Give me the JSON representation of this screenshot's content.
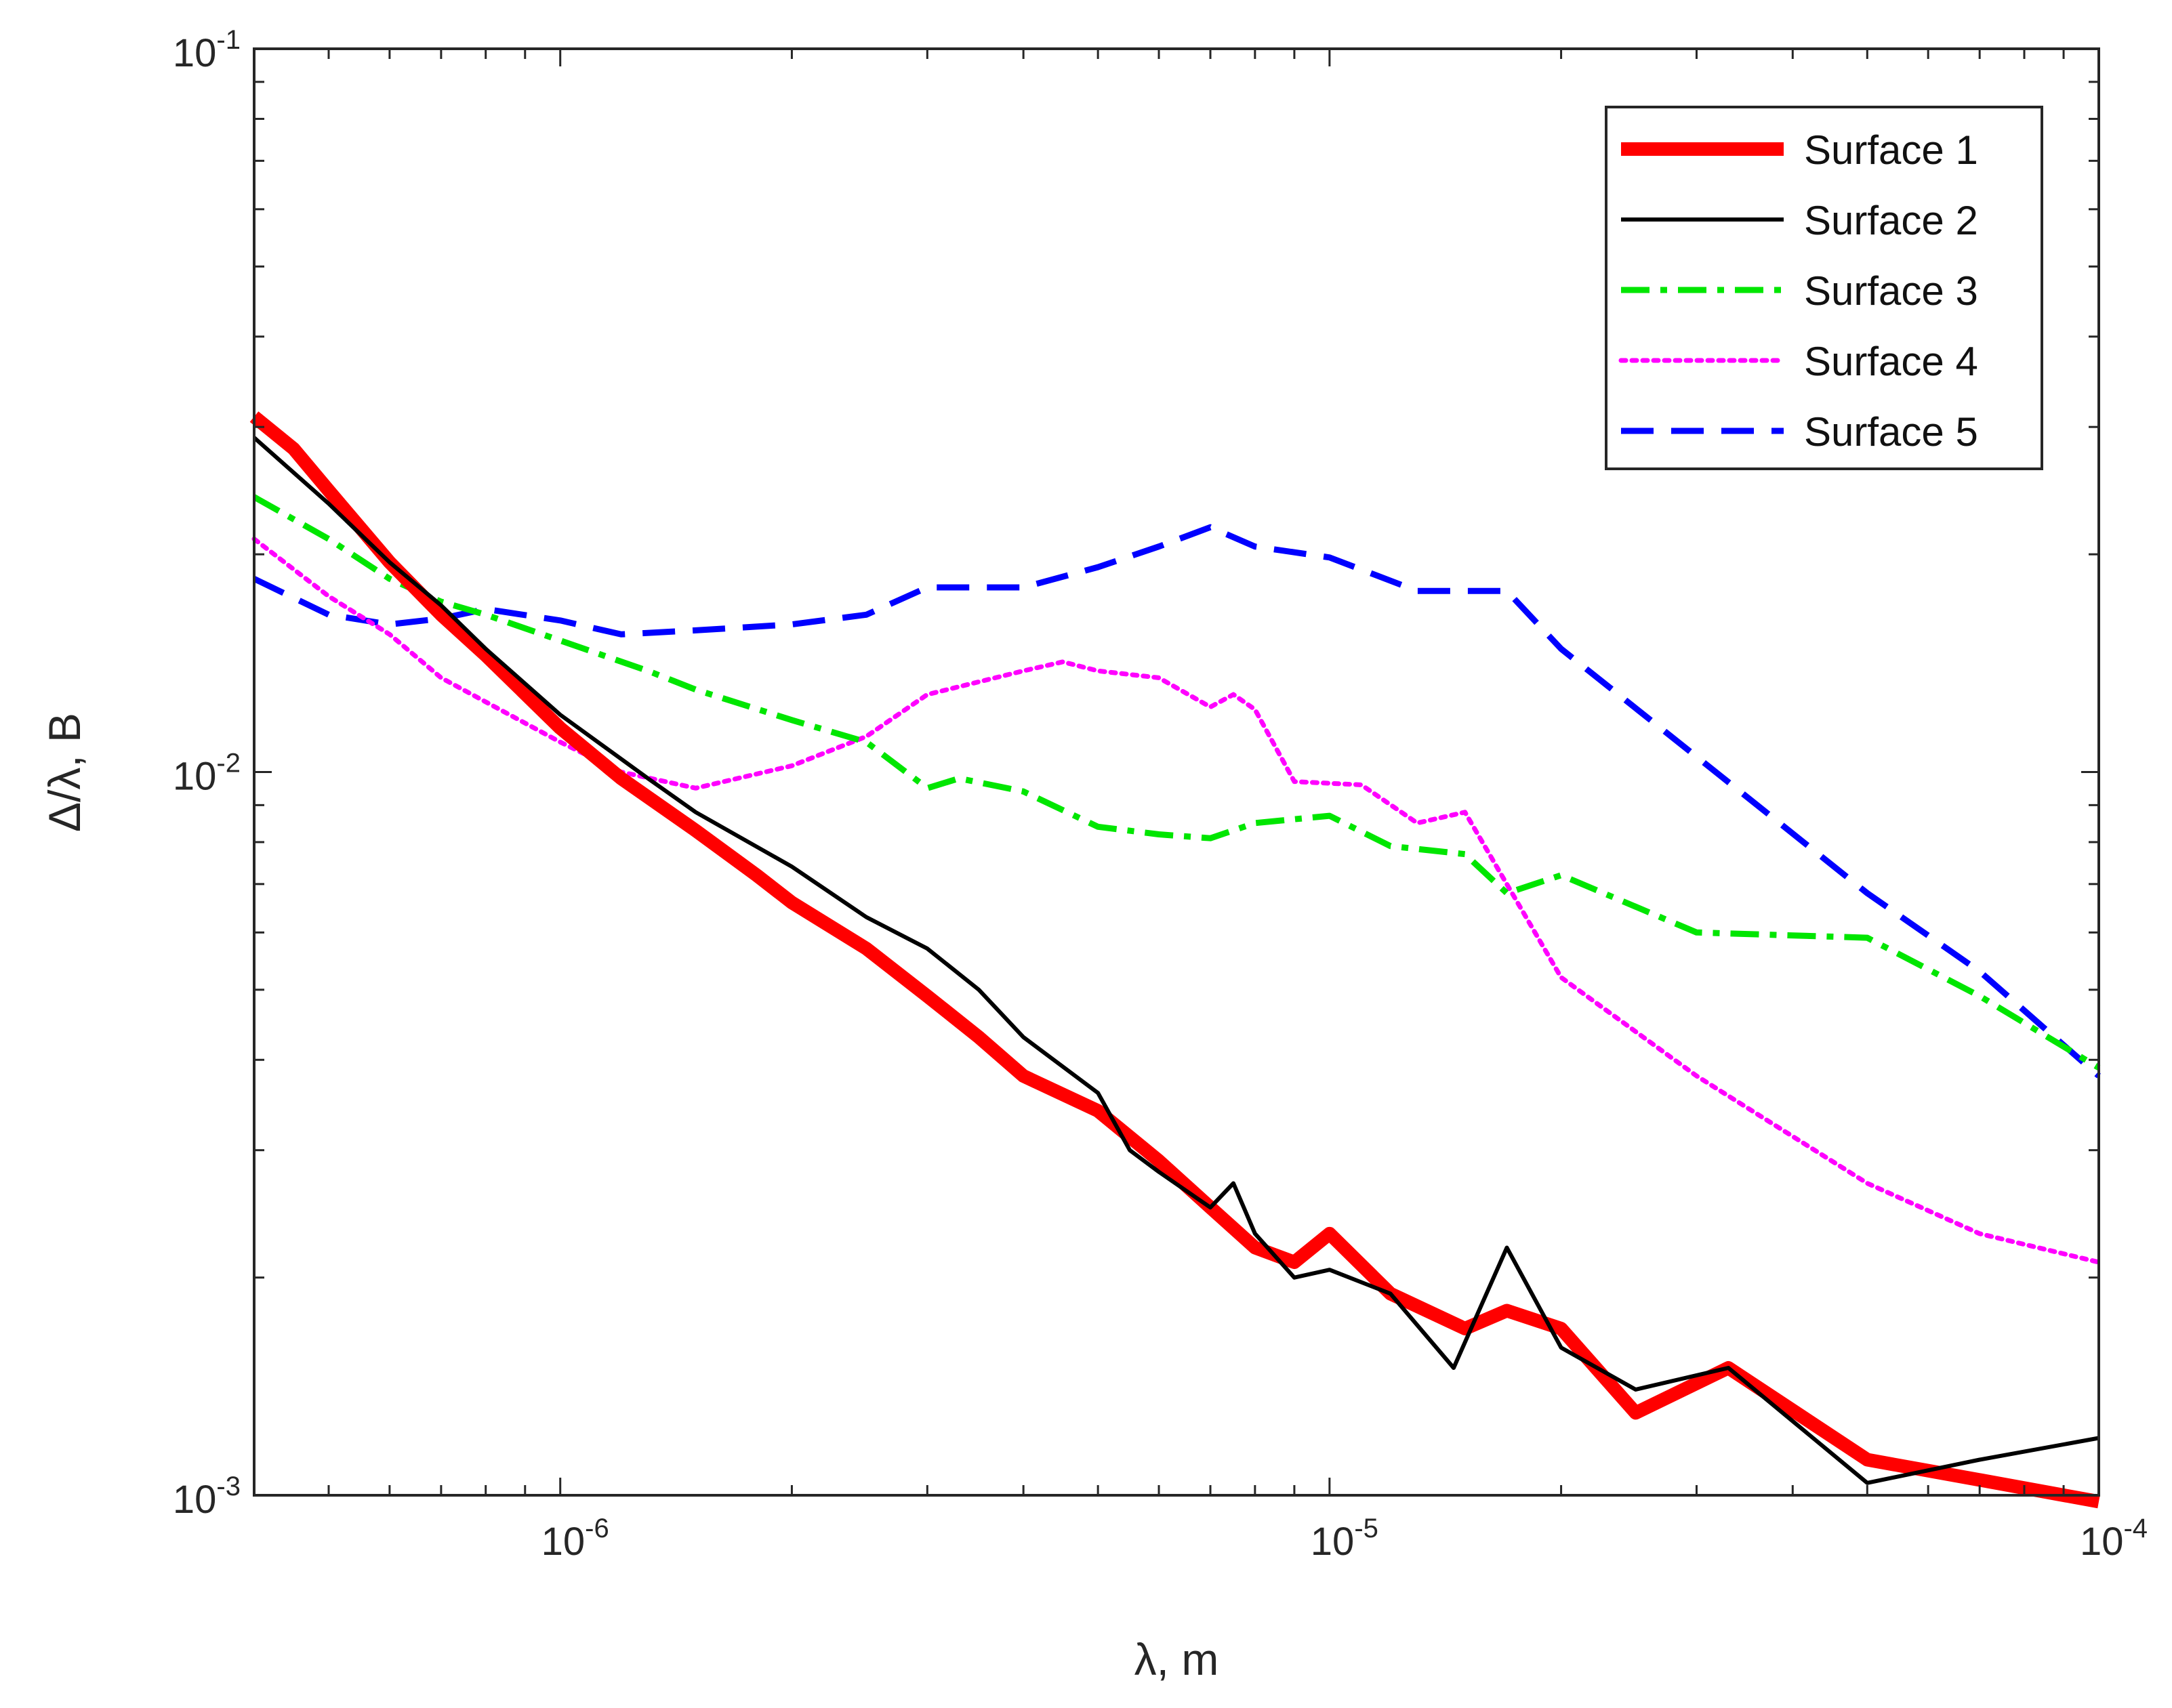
{
  "chart_data": {
    "type": "line",
    "title": "",
    "xlabel": "λ, m",
    "ylabel": "Δ/λ,  B",
    "xscale": "log",
    "yscale": "log",
    "xlim": [
      4e-07,
      0.0001
    ],
    "ylim": [
      0.001,
      0.1
    ],
    "grid": false,
    "legend_position": "top-right",
    "x_ticks": [
      {
        "value": 1e-06,
        "base": "10",
        "exp": "-6"
      },
      {
        "value": 1e-05,
        "base": "10",
        "exp": "-5"
      },
      {
        "value": 0.0001,
        "base": "10",
        "exp": "-4"
      }
    ],
    "y_ticks": [
      {
        "value": 0.001,
        "base": "10",
        "exp": "-3"
      },
      {
        "value": 0.01,
        "base": "10",
        "exp": "-2"
      },
      {
        "value": 0.1,
        "base": "10",
        "exp": "-1"
      }
    ],
    "series": [
      {
        "name": "Surface 1",
        "color": "#ff0000",
        "style": "solid-thick",
        "points": [
          [
            4e-07,
            0.031
          ],
          [
            4.5e-07,
            0.028
          ],
          [
            5e-07,
            0.0245
          ],
          [
            6e-07,
            0.0195
          ],
          [
            7e-07,
            0.0165
          ],
          [
            8e-07,
            0.0145
          ],
          [
            1e-06,
            0.0115
          ],
          [
            1.2e-06,
            0.0098
          ],
          [
            1.5e-06,
            0.0083
          ],
          [
            1.8e-06,
            0.0072
          ],
          [
            2e-06,
            0.0066
          ],
          [
            2.5e-06,
            0.0057
          ],
          [
            3e-06,
            0.0049
          ],
          [
            3.5e-06,
            0.0043
          ],
          [
            4e-06,
            0.0038
          ],
          [
            5e-06,
            0.0034
          ],
          [
            6e-06,
            0.0029
          ],
          [
            7e-06,
            0.0025
          ],
          [
            8e-06,
            0.0022
          ],
          [
            9e-06,
            0.0021
          ],
          [
            1e-05,
            0.0023
          ],
          [
            1.2e-05,
            0.0019
          ],
          [
            1.5e-05,
            0.0017
          ],
          [
            1.7e-05,
            0.0018
          ],
          [
            2e-05,
            0.0017
          ],
          [
            2.5e-05,
            0.0013
          ],
          [
            3.3e-05,
            0.0015
          ],
          [
            5e-05,
            0.00112
          ],
          [
            7e-05,
            0.00105
          ],
          [
            0.0001,
            0.00098
          ]
        ]
      },
      {
        "name": "Surface 2",
        "color": "#000000",
        "style": "solid",
        "points": [
          [
            4e-07,
            0.029
          ],
          [
            5e-07,
            0.0235
          ],
          [
            6e-07,
            0.0195
          ],
          [
            7e-07,
            0.017
          ],
          [
            8e-07,
            0.0148
          ],
          [
            1e-06,
            0.012
          ],
          [
            1.3e-06,
            0.0098
          ],
          [
            1.5e-06,
            0.0088
          ],
          [
            2e-06,
            0.0074
          ],
          [
            2.5e-06,
            0.0063
          ],
          [
            3e-06,
            0.0057
          ],
          [
            3.5e-06,
            0.005
          ],
          [
            4e-06,
            0.0043
          ],
          [
            5e-06,
            0.0036
          ],
          [
            5.5e-06,
            0.003
          ],
          [
            6e-06,
            0.0028
          ],
          [
            7e-06,
            0.0025
          ],
          [
            7.5e-06,
            0.0027
          ],
          [
            8e-06,
            0.0023
          ],
          [
            9e-06,
            0.002
          ],
          [
            1e-05,
            0.00205
          ],
          [
            1.2e-05,
            0.0019
          ],
          [
            1.45e-05,
            0.0015
          ],
          [
            1.7e-05,
            0.0022
          ],
          [
            2e-05,
            0.0016
          ],
          [
            2.5e-05,
            0.0014
          ],
          [
            3.3e-05,
            0.0015
          ],
          [
            5e-05,
            0.00104
          ],
          [
            7e-05,
            0.00112
          ],
          [
            0.0001,
            0.0012
          ]
        ]
      },
      {
        "name": "Surface 3",
        "color": "#00e600",
        "style": "dash-dot",
        "points": [
          [
            4e-07,
            0.024
          ],
          [
            5e-07,
            0.021
          ],
          [
            6e-07,
            0.0185
          ],
          [
            7e-07,
            0.0172
          ],
          [
            8e-07,
            0.0165
          ],
          [
            1e-06,
            0.0152
          ],
          [
            1.3e-06,
            0.0138
          ],
          [
            1.5e-06,
            0.013
          ],
          [
            2e-06,
            0.0118
          ],
          [
            2.5e-06,
            0.011
          ],
          [
            3e-06,
            0.0095
          ],
          [
            3.3e-06,
            0.0098
          ],
          [
            4e-06,
            0.0094
          ],
          [
            5e-06,
            0.0084
          ],
          [
            6e-06,
            0.0082
          ],
          [
            7e-06,
            0.0081
          ],
          [
            8e-06,
            0.0085
          ],
          [
            1e-05,
            0.0087
          ],
          [
            1.2e-05,
            0.0079
          ],
          [
            1.5e-05,
            0.0077
          ],
          [
            1.7e-05,
            0.0068
          ],
          [
            2e-05,
            0.0072
          ],
          [
            3e-05,
            0.006
          ],
          [
            5e-05,
            0.0059
          ],
          [
            7e-05,
            0.0049
          ],
          [
            0.0001,
            0.0039
          ]
        ]
      },
      {
        "name": "Surface 4",
        "color": "#ff00ff",
        "style": "dotted",
        "points": [
          [
            4e-07,
            0.021
          ],
          [
            5e-07,
            0.0175
          ],
          [
            6e-07,
            0.0155
          ],
          [
            7e-07,
            0.0135
          ],
          [
            8e-07,
            0.0125
          ],
          [
            1e-06,
            0.011
          ],
          [
            1.2e-06,
            0.01
          ],
          [
            1.5e-06,
            0.0095
          ],
          [
            2e-06,
            0.0102
          ],
          [
            2.5e-06,
            0.0112
          ],
          [
            3e-06,
            0.0128
          ],
          [
            4e-06,
            0.0138
          ],
          [
            4.5e-06,
            0.0142
          ],
          [
            5e-06,
            0.0138
          ],
          [
            6e-06,
            0.0135
          ],
          [
            7e-06,
            0.0123
          ],
          [
            7.5e-06,
            0.0128
          ],
          [
            8e-06,
            0.0122
          ],
          [
            9e-06,
            0.0097
          ],
          [
            1.1e-05,
            0.0096
          ],
          [
            1.3e-05,
            0.0085
          ],
          [
            1.5e-05,
            0.0088
          ],
          [
            2e-05,
            0.0052
          ],
          [
            3e-05,
            0.0038
          ],
          [
            5e-05,
            0.0027
          ],
          [
            7e-05,
            0.0023
          ],
          [
            0.0001,
            0.0021
          ]
        ]
      },
      {
        "name": "Surface 5",
        "color": "#0000ff",
        "style": "dashed",
        "points": [
          [
            4e-07,
            0.0185
          ],
          [
            5e-07,
            0.0165
          ],
          [
            6e-07,
            0.016
          ],
          [
            7e-07,
            0.0163
          ],
          [
            8e-07,
            0.0168
          ],
          [
            1e-06,
            0.0162
          ],
          [
            1.2e-06,
            0.0155
          ],
          [
            1.5e-06,
            0.0157
          ],
          [
            2e-06,
            0.016
          ],
          [
            2.5e-06,
            0.0165
          ],
          [
            3e-06,
            0.018
          ],
          [
            4e-06,
            0.018
          ],
          [
            5e-06,
            0.0192
          ],
          [
            6e-06,
            0.0205
          ],
          [
            7e-06,
            0.0218
          ],
          [
            8e-06,
            0.0205
          ],
          [
            1e-05,
            0.0198
          ],
          [
            1.3e-05,
            0.0178
          ],
          [
            1.7e-05,
            0.0178
          ],
          [
            2e-05,
            0.0148
          ],
          [
            3e-05,
            0.0105
          ],
          [
            5e-05,
            0.0068
          ],
          [
            7e-05,
            0.0053
          ],
          [
            0.0001,
            0.0038
          ]
        ]
      }
    ]
  }
}
